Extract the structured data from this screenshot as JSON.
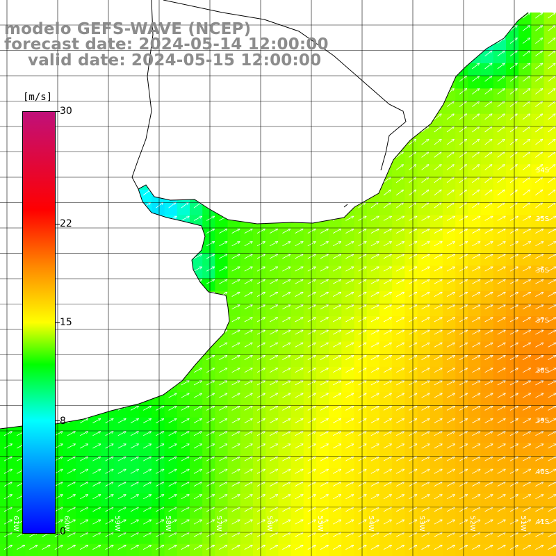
{
  "titles": {
    "line1": "modelo GEFS-WAVE (NCEP)",
    "line2": "forecast date: 2024-05-14 12:00:00",
    "line3": "valid date: 2024-05-15 12:00:00"
  },
  "colorbar": {
    "units": "[m/s]",
    "min": 0,
    "max": 30,
    "ticks": [
      {
        "label": "30",
        "value": 30
      },
      {
        "label": "22",
        "value": 22
      },
      {
        "label": "15",
        "value": 15
      },
      {
        "label": "8",
        "value": 8
      },
      {
        "label": "0",
        "value": 0
      }
    ],
    "stops": [
      {
        "value": 0,
        "color": "#0000ff"
      },
      {
        "value": 8,
        "color": "#00ffff"
      },
      {
        "value": 12,
        "color": "#00ff00"
      },
      {
        "value": 15,
        "color": "#ffff00"
      },
      {
        "value": 19,
        "color": "#ff8800"
      },
      {
        "value": 23,
        "color": "#ff0000"
      },
      {
        "value": 30,
        "color": "#c0107a"
      }
    ]
  },
  "lat_labels": [
    "34S",
    "35S",
    "36S",
    "37S",
    "38S",
    "39S",
    "40S",
    "41S"
  ],
  "lon_labels": [
    "61W",
    "60W",
    "59W",
    "58W",
    "57W",
    "56W",
    "55W",
    "54W",
    "53W",
    "52W",
    "51W"
  ],
  "colors": {
    "land": "#ffffff",
    "grid": "#000000",
    "coast": "#000000",
    "arrow": "#ffffff",
    "title": "#8c8c8c"
  }
}
